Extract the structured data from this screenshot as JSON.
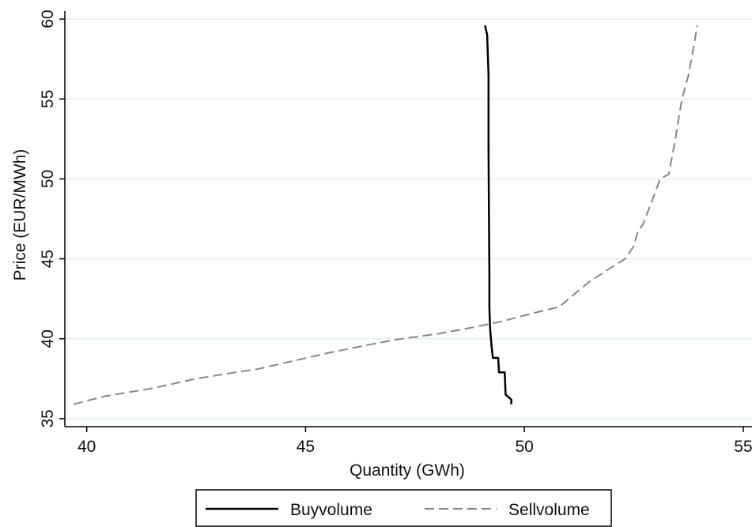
{
  "chart_data": {
    "type": "line",
    "xlabel": "Quantity (GWh)",
    "ylabel": "Price (EUR/MWh)",
    "xlim": [
      39.5,
      55.2
    ],
    "ylim": [
      34.5,
      60.5
    ],
    "xticks": [
      "40",
      "45",
      "50",
      "55"
    ],
    "yticks": [
      "35",
      "40",
      "45",
      "50",
      "55",
      "60"
    ],
    "grid": "horizontal",
    "legend_position": "bottom",
    "series": [
      {
        "name": "Buyvolume",
        "color": "#000000",
        "style": "solid",
        "points": [
          [
            49.1,
            59.6
          ],
          [
            49.15,
            59.0
          ],
          [
            49.18,
            56.5
          ],
          [
            49.18,
            52.0
          ],
          [
            49.19,
            48.0
          ],
          [
            49.2,
            44.0
          ],
          [
            49.2,
            42.0
          ],
          [
            49.21,
            41.0
          ],
          [
            49.22,
            40.5
          ],
          [
            49.25,
            39.5
          ],
          [
            49.28,
            38.8
          ],
          [
            49.4,
            38.8
          ],
          [
            49.42,
            37.9
          ],
          [
            49.55,
            37.9
          ],
          [
            49.57,
            36.5
          ],
          [
            49.7,
            36.2
          ],
          [
            49.7,
            35.9
          ]
        ]
      },
      {
        "name": "Sellvolume",
        "color": "#888888",
        "style": "dashed",
        "points": [
          [
            39.7,
            35.9
          ],
          [
            40.4,
            36.4
          ],
          [
            41.5,
            36.9
          ],
          [
            42.5,
            37.5
          ],
          [
            43.4,
            37.9
          ],
          [
            43.9,
            38.1
          ],
          [
            44.7,
            38.6
          ],
          [
            45.5,
            39.1
          ],
          [
            46.4,
            39.6
          ],
          [
            47.2,
            40.0
          ],
          [
            48.0,
            40.3
          ],
          [
            48.8,
            40.7
          ],
          [
            49.5,
            41.1
          ],
          [
            50.2,
            41.6
          ],
          [
            50.8,
            42.0
          ],
          [
            51.1,
            42.7
          ],
          [
            51.5,
            43.6
          ],
          [
            51.9,
            44.3
          ],
          [
            52.3,
            45.0
          ],
          [
            52.5,
            45.8
          ],
          [
            52.6,
            46.8
          ],
          [
            52.7,
            47.1
          ],
          [
            52.9,
            48.5
          ],
          [
            53.1,
            50.0
          ],
          [
            53.3,
            50.3
          ],
          [
            53.45,
            52.5
          ],
          [
            53.6,
            55.0
          ],
          [
            53.75,
            56.5
          ],
          [
            53.85,
            58.0
          ],
          [
            53.95,
            59.6
          ]
        ]
      }
    ]
  }
}
